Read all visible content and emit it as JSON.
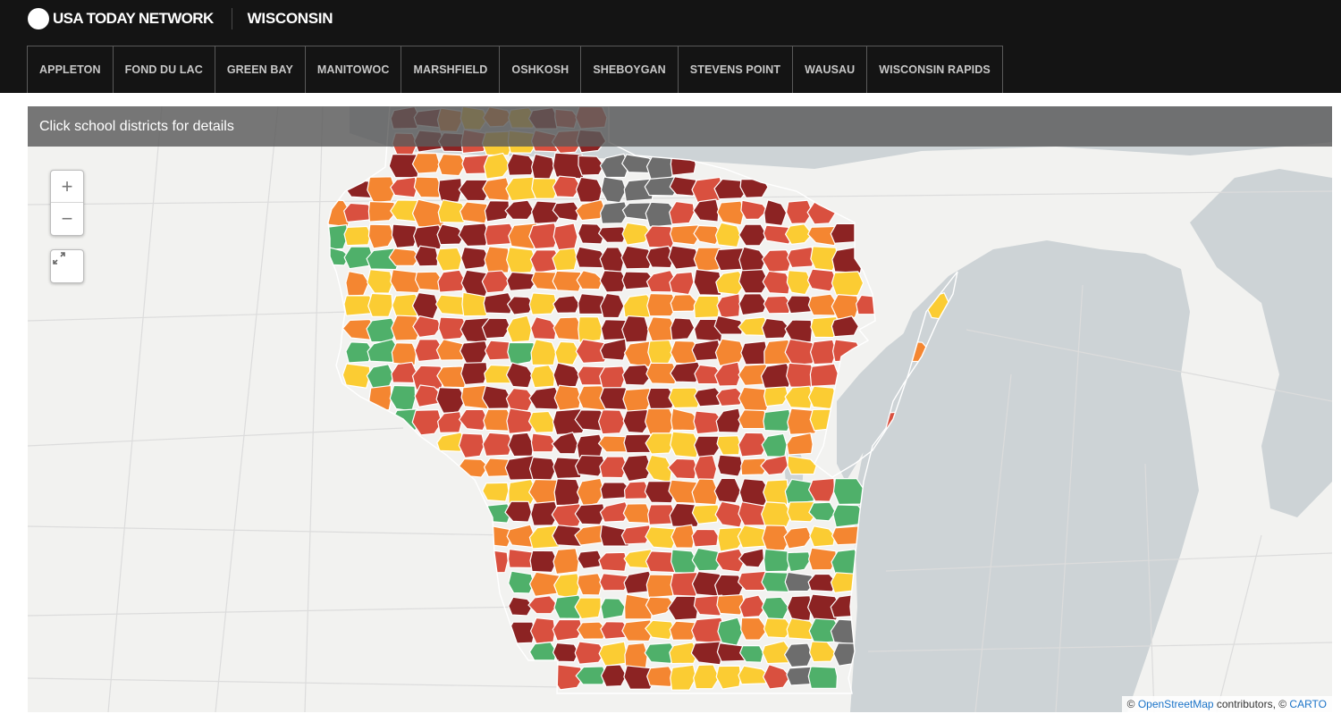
{
  "header": {
    "brand": "USA TODAY NETWORK",
    "region": "WISCONSIN",
    "nav": [
      "APPLETON",
      "FOND DU LAC",
      "GREEN BAY",
      "MANITOWOC",
      "MARSHFIELD",
      "OSHKOSH",
      "SHEBOYGAN",
      "STEVENS POINT",
      "WAUSAU",
      "WISCONSIN RAPIDS"
    ]
  },
  "map": {
    "banner": "Click school districts for details",
    "zoom_in": "+",
    "zoom_out": "−",
    "fullscreen_icon": "expand-arrows-icon",
    "attribution": {
      "prefix": "© ",
      "osm": "OpenStreetMap",
      "middle": " contributors, © ",
      "carto": "CARTO"
    },
    "district_colors": {
      "dark-red": "#8c2323",
      "red": "#d9503f",
      "orange": "#f48631",
      "yellow": "#fbcc33",
      "green": "#4fb06a",
      "gray": "#6d6d6d"
    },
    "water_color": "#cdd3d6",
    "land_color": "#f2f2f0"
  }
}
